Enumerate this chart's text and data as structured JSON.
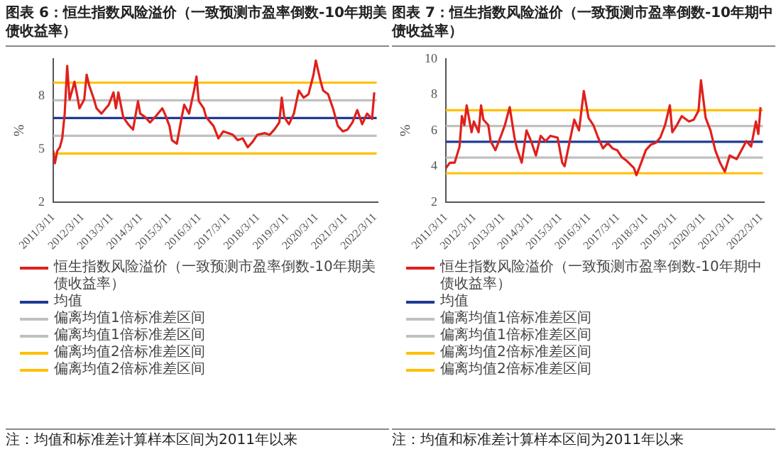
{
  "chart_data": [
    {
      "type": "line",
      "title": "图表 6：恒生指数风险溢价（一致预测市盈率倒数-10年期美债收益率）",
      "ylabel": "%",
      "ylim": [
        2,
        10.1
      ],
      "yticks": [
        2,
        5,
        8
      ],
      "xlim": [
        "2011-03-11",
        "2022-04-11"
      ],
      "xticks": [
        {
          "value": "2011-03-11",
          "label": "2011/3/11"
        },
        {
          "value": "2012-03-11",
          "label": "2012/3/11"
        },
        {
          "value": "2013-03-11",
          "label": "2013/3/11"
        },
        {
          "value": "2014-03-11",
          "label": "2014/3/11"
        },
        {
          "value": "2015-03-11",
          "label": "2015/3/11"
        },
        {
          "value": "2016-03-11",
          "label": "2016/3/11"
        },
        {
          "value": "2017-03-11",
          "label": "2017/3/11"
        },
        {
          "value": "2018-03-11",
          "label": "2018/3/11"
        },
        {
          "value": "2019-03-11",
          "label": "2019/3/11"
        },
        {
          "value": "2020-03-11",
          "label": "2020/3/11"
        },
        {
          "value": "2021-03-11",
          "label": "2021/3/11"
        },
        {
          "value": "2022-03-11",
          "label": "2022/3/11"
        }
      ],
      "grid": false,
      "legend": "bottom",
      "marker": "none",
      "line_style": "solid",
      "annotations": [
        "注：均值和标准差计算样本区间为2011年以来"
      ],
      "series": [
        {
          "name": "恒生指数风险溢价（一致预测市盈率倒数-10年期美债收益率）",
          "color": "#e0201b",
          "x": [
            "2011-03-11",
            "2011-04",
            "2011-05",
            "2011-06",
            "2011-07",
            "2011-08",
            "2011-09",
            "2011-10",
            "2011-11",
            "2011-12",
            "2012-01",
            "2012-02",
            "2012-04",
            "2012-05",
            "2012-06",
            "2012-08",
            "2012-09",
            "2012-11",
            "2013-02",
            "2013-04",
            "2013-05",
            "2013-06",
            "2013-08",
            "2013-10",
            "2013-12",
            "2014-02",
            "2014-03",
            "2014-05",
            "2014-07",
            "2014-09",
            "2014-12",
            "2015-01",
            "2015-03",
            "2015-04",
            "2015-06",
            "2015-08",
            "2015-09",
            "2015-11",
            "2016-01",
            "2016-02",
            "2016-03",
            "2016-05",
            "2016-06",
            "2016-09",
            "2016-11",
            "2017-01",
            "2017-03",
            "2017-05",
            "2017-07",
            "2017-09",
            "2017-11",
            "2018-01",
            "2018-03",
            "2018-06",
            "2018-08",
            "2018-10",
            "2018-12",
            "2019-01",
            "2019-02",
            "2019-04",
            "2019-06",
            "2019-08",
            "2019-10",
            "2019-12",
            "2020-02",
            "2020-03",
            "2020-05",
            "2020-06",
            "2020-08",
            "2020-10",
            "2020-12",
            "2021-02",
            "2021-04",
            "2021-06",
            "2021-08",
            "2021-10",
            "2021-12",
            "2022-02",
            "2022-03"
          ],
          "values": [
            4.9,
            4.2,
            4.9,
            5.1,
            5.6,
            7.0,
            9.7,
            7.8,
            8.3,
            8.8,
            8.1,
            7.3,
            7.8,
            9.2,
            8.6,
            7.8,
            7.3,
            7.0,
            7.5,
            8.2,
            7.3,
            8.2,
            6.8,
            6.4,
            6.1,
            7.7,
            7.0,
            6.8,
            6.5,
            6.8,
            7.3,
            7.0,
            6.3,
            5.5,
            5.3,
            6.8,
            7.5,
            7.0,
            8.3,
            9.1,
            7.7,
            7.3,
            6.8,
            6.3,
            5.6,
            6.0,
            5.9,
            5.8,
            5.5,
            5.6,
            5.1,
            5.4,
            5.8,
            5.9,
            5.8,
            6.1,
            6.5,
            7.9,
            6.8,
            6.4,
            7.0,
            8.3,
            7.9,
            8.1,
            9.2,
            10.0,
            8.8,
            8.3,
            8.1,
            7.3,
            6.3,
            6.0,
            6.1,
            6.5,
            7.2,
            6.4,
            7.0,
            6.7,
            8.2
          ]
        },
        {
          "name": "均值",
          "color": "#1f3a93",
          "x": [
            "2011-03-11",
            "2022-03-31"
          ],
          "values": [
            6.75,
            6.75
          ]
        },
        {
          "name": "偏离均值1倍标准差区间",
          "color": "#c0c0c0",
          "x": [
            "2011-03-11",
            "2022-03-31"
          ],
          "values": [
            7.75,
            7.75
          ]
        },
        {
          "name": "偏离均值1倍标准差区间",
          "color": "#c0c0c0",
          "x": [
            "2011-03-11",
            "2022-03-31"
          ],
          "values": [
            5.75,
            5.75
          ]
        },
        {
          "name": "偏离均值2倍标准差区间",
          "color": "#ffc000",
          "x": [
            "2011-03-11",
            "2022-03-31"
          ],
          "values": [
            8.75,
            8.75
          ]
        },
        {
          "name": "偏离均值2倍标准差区间",
          "color": "#ffc000",
          "x": [
            "2011-03-11",
            "2022-03-31"
          ],
          "values": [
            4.75,
            4.75
          ]
        }
      ]
    },
    {
      "type": "line",
      "title": "图表 7：恒生指数风险溢价（一致预测市盈率倒数-10年期中债收益率）",
      "ylabel": "%",
      "ylim": [
        2,
        10
      ],
      "yticks": [
        2,
        4,
        6,
        8,
        10
      ],
      "xlim": [
        "2011-03-11",
        "2022-04-11"
      ],
      "xticks": [
        {
          "value": "2011-03-11",
          "label": "2011/3/11"
        },
        {
          "value": "2012-03-11",
          "label": "2012/3/11"
        },
        {
          "value": "2013-03-11",
          "label": "2013/3/11"
        },
        {
          "value": "2014-03-11",
          "label": "2014/3/11"
        },
        {
          "value": "2015-03-11",
          "label": "2015/3/11"
        },
        {
          "value": "2016-03-11",
          "label": "2016/3/11"
        },
        {
          "value": "2017-03-11",
          "label": "2017/3/11"
        },
        {
          "value": "2018-03-11",
          "label": "2018/3/11"
        },
        {
          "value": "2019-03-11",
          "label": "2019/3/11"
        },
        {
          "value": "2020-03-11",
          "label": "2020/3/11"
        },
        {
          "value": "2021-03-11",
          "label": "2021/3/11"
        },
        {
          "value": "2022-03-11",
          "label": "2022/3/11"
        }
      ],
      "grid": false,
      "legend": "bottom",
      "marker": "none",
      "line_style": "solid",
      "annotations": [
        "注：均值和标准差计算样本区间为2011年以来"
      ],
      "series": [
        {
          "name": "恒生指数风险溢价（一致预测市盈率倒数-10年期中债收益率）",
          "color": "#e0201b",
          "x": [
            "2011-03-11",
            "2011-05",
            "2011-07",
            "2011-09",
            "2011-10",
            "2011-11",
            "2011-12",
            "2012-02",
            "2012-03",
            "2012-05",
            "2012-06",
            "2012-07",
            "2012-09",
            "2012-10",
            "2012-12",
            "2013-02",
            "2013-04",
            "2013-06",
            "2013-08",
            "2013-09",
            "2013-11",
            "2014-01",
            "2014-03",
            "2014-05",
            "2014-07",
            "2014-09",
            "2014-11",
            "2015-02",
            "2015-04",
            "2015-05",
            "2015-07",
            "2015-09",
            "2015-11",
            "2016-01",
            "2016-03",
            "2016-05",
            "2016-07",
            "2016-09",
            "2016-11",
            "2017-01",
            "2017-03",
            "2017-05",
            "2017-07",
            "2017-10",
            "2017-11",
            "2018-01",
            "2018-03",
            "2018-05",
            "2018-07",
            "2018-09",
            "2018-11",
            "2019-01",
            "2019-02",
            "2019-04",
            "2019-06",
            "2019-09",
            "2019-11",
            "2020-01",
            "2020-02",
            "2020-04",
            "2020-06",
            "2020-08",
            "2020-10",
            "2020-12",
            "2021-02",
            "2021-05",
            "2021-07",
            "2021-09",
            "2021-11",
            "2022-01",
            "2022-02",
            "2022-03"
          ],
          "values": [
            3.9,
            4.2,
            4.2,
            5.1,
            6.8,
            6.3,
            7.4,
            5.9,
            6.5,
            5.9,
            7.4,
            6.6,
            6.3,
            5.4,
            4.9,
            5.6,
            6.3,
            7.3,
            5.6,
            5.0,
            4.2,
            6.0,
            5.4,
            4.6,
            5.7,
            5.4,
            5.7,
            5.6,
            4.2,
            4.0,
            5.3,
            6.6,
            6.0,
            8.2,
            6.7,
            6.3,
            5.6,
            5.0,
            5.3,
            5.0,
            4.9,
            4.5,
            4.3,
            3.9,
            3.5,
            4.2,
            4.9,
            5.2,
            5.3,
            5.6,
            6.3,
            7.4,
            5.9,
            6.3,
            6.8,
            6.5,
            6.6,
            7.1,
            8.8,
            6.7,
            6.0,
            4.9,
            4.2,
            3.7,
            4.6,
            4.4,
            4.9,
            5.4,
            5.1,
            6.5,
            5.8,
            7.3
          ]
        },
        {
          "name": "均值",
          "color": "#1f3a93",
          "x": [
            "2011-03-11",
            "2022-03-31"
          ],
          "values": [
            5.37,
            5.37
          ]
        },
        {
          "name": "偏离均值1倍标准差区间",
          "color": "#c0c0c0",
          "x": [
            "2011-03-11",
            "2022-03-31"
          ],
          "values": [
            6.25,
            6.25
          ]
        },
        {
          "name": "偏离均值1倍标准差区间",
          "color": "#c0c0c0",
          "x": [
            "2011-03-11",
            "2022-03-31"
          ],
          "values": [
            4.49,
            4.49
          ]
        },
        {
          "name": "偏离均值2倍标准差区间",
          "color": "#ffc000",
          "x": [
            "2011-03-11",
            "2022-03-31"
          ],
          "values": [
            7.13,
            7.13
          ]
        },
        {
          "name": "偏离均值2倍标准差区间",
          "color": "#ffc000",
          "x": [
            "2011-03-11",
            "2022-03-31"
          ],
          "values": [
            3.61,
            3.61
          ]
        }
      ]
    }
  ]
}
